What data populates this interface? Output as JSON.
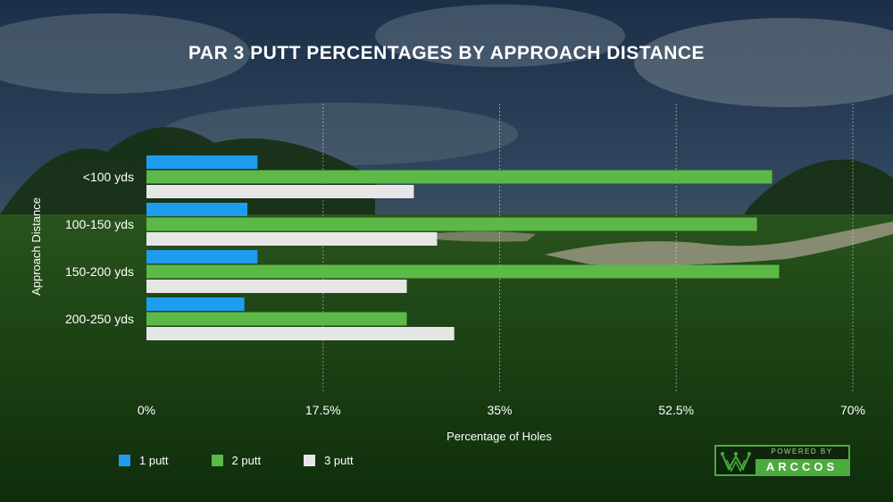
{
  "chart_data": {
    "type": "bar",
    "orientation": "horizontal",
    "title": "PAR 3 PUTT PERCENTAGES BY APPROACH DISTANCE",
    "xlabel": "Percentage of Holes",
    "ylabel": "Approach Distance",
    "categories": [
      "<100 yds",
      "100-150 yds",
      "150-200 yds",
      "200-250 yds"
    ],
    "series": [
      {
        "name": "1 putt",
        "color": "#1e9df0",
        "values": [
          11,
          10,
          11,
          9.7
        ]
      },
      {
        "name": "2 putt",
        "color": "#5cb947",
        "values": [
          62,
          60.5,
          62.7,
          25.8
        ]
      },
      {
        "name": "3 putt",
        "color": "#e6e6e6",
        "values": [
          26.5,
          28.8,
          25.8,
          30.5
        ]
      }
    ],
    "xlim": [
      0,
      70
    ],
    "xticks": [
      0,
      17.5,
      35,
      52.5,
      70
    ],
    "xtick_labels": [
      "0%",
      "17.5%",
      "35%",
      "52.5%",
      "70%"
    ],
    "grid": "vertical",
    "legend_position": "bottom-left"
  },
  "branding": {
    "powered_by": "POWERED BY",
    "name": "ARCCOS"
  }
}
